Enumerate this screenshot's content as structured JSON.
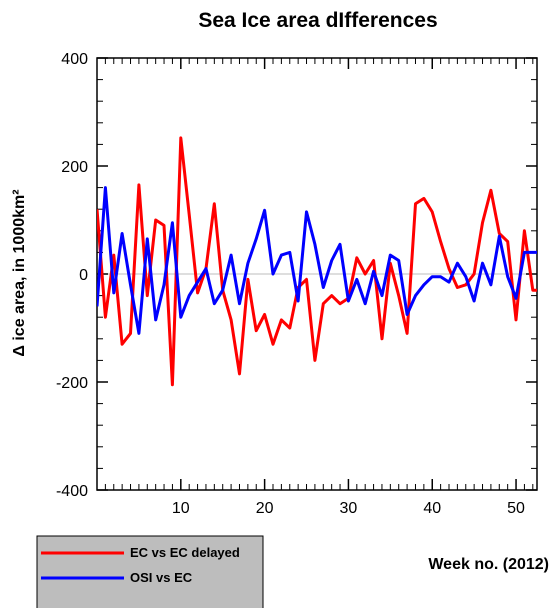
{
  "chart_data": {
    "type": "line",
    "title": "Sea Ice area dIfferences",
    "xlabel": "Week no. (2012)",
    "ylabel": "Δ ice area, in 1000km²",
    "xlim": [
      0,
      52.5
    ],
    "ylim": [
      -400,
      400
    ],
    "x_ticks": [
      10,
      20,
      30,
      40,
      50
    ],
    "x_tick_labels": [
      "10",
      "20",
      "30",
      "40",
      "50"
    ],
    "y_ticks": [
      -400,
      -200,
      0,
      200,
      400
    ],
    "y_tick_labels": [
      "-400",
      "-200",
      "0",
      "200",
      "400"
    ],
    "reference_line": 0,
    "legend_position": "bottom-left, outside plot",
    "x": [
      0,
      1,
      2,
      3,
      4,
      5,
      6,
      7,
      8,
      9,
      10,
      11,
      12,
      13,
      14,
      15,
      16,
      17,
      18,
      19,
      20,
      21,
      22,
      23,
      24,
      25,
      26,
      27,
      28,
      29,
      30,
      31,
      32,
      33,
      34,
      35,
      36,
      37,
      38,
      39,
      40,
      41,
      42,
      43,
      44,
      45,
      46,
      47,
      48,
      49,
      50,
      51,
      52,
      53
    ],
    "series": [
      {
        "name": "EC vs EC delayed",
        "color": "#ff0000",
        "values": [
          120,
          -80,
          35,
          -130,
          -110,
          165,
          -40,
          100,
          90,
          -205,
          252,
          110,
          -35,
          10,
          130,
          -30,
          -85,
          -185,
          -10,
          -105,
          -75,
          -130,
          -85,
          -100,
          -25,
          -10,
          -160,
          -55,
          -40,
          -55,
          -45,
          30,
          0,
          25,
          -120,
          20,
          -40,
          -110,
          130,
          140,
          115,
          60,
          10,
          -25,
          -20,
          0,
          95,
          155,
          75,
          60,
          -85,
          80,
          -30,
          -30
        ]
      },
      {
        "name": "OSI vs EC",
        "color": "#0000ff",
        "values": [
          -60,
          160,
          -35,
          75,
          -20,
          -110,
          65,
          -85,
          -20,
          95,
          -80,
          -40,
          -15,
          10,
          -55,
          -30,
          35,
          -55,
          20,
          65,
          118,
          0,
          35,
          40,
          -50,
          115,
          55,
          -25,
          25,
          55,
          -50,
          -10,
          -55,
          5,
          -40,
          35,
          25,
          -75,
          -40,
          -20,
          -5,
          -5,
          -15,
          20,
          -5,
          -50,
          20,
          -20,
          70,
          -5,
          -45,
          40,
          40,
          40
        ]
      }
    ]
  }
}
